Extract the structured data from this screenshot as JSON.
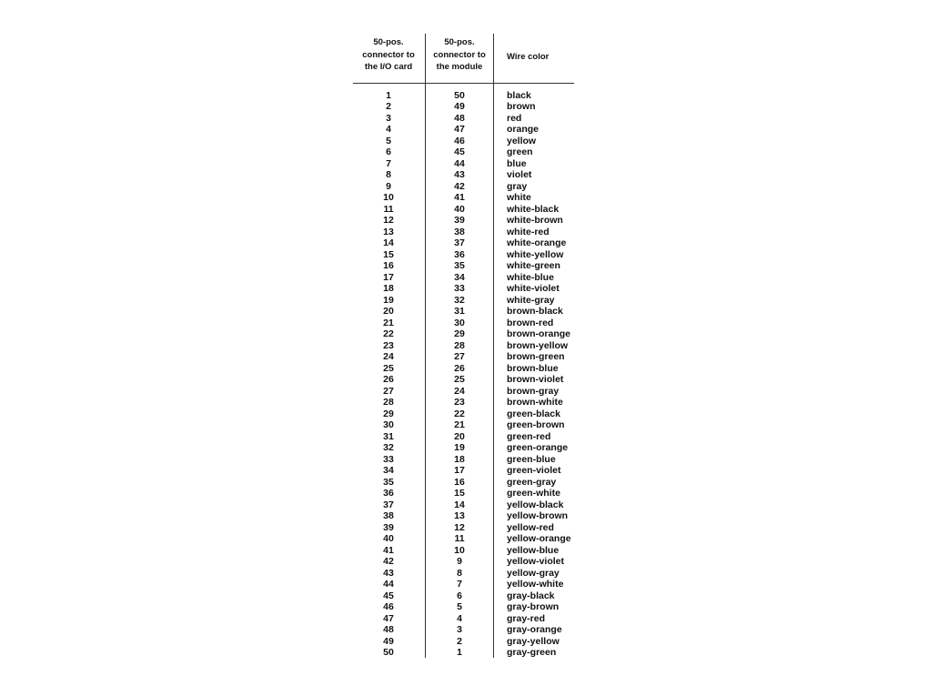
{
  "table": {
    "headers": [
      "50-pos.\nconnector to\nthe I/O card",
      "50-pos.\nconnector to\nthe module",
      "Wire color"
    ],
    "rows": [
      [
        "1",
        "50",
        "black"
      ],
      [
        "2",
        "49",
        "brown"
      ],
      [
        "3",
        "48",
        "red"
      ],
      [
        "4",
        "47",
        "orange"
      ],
      [
        "5",
        "46",
        "yellow"
      ],
      [
        "6",
        "45",
        "green"
      ],
      [
        "7",
        "44",
        "blue"
      ],
      [
        "8",
        "43",
        "violet"
      ],
      [
        "9",
        "42",
        "gray"
      ],
      [
        "10",
        "41",
        "white"
      ],
      [
        "11",
        "40",
        "white-black"
      ],
      [
        "12",
        "39",
        "white-brown"
      ],
      [
        "13",
        "38",
        "white-red"
      ],
      [
        "14",
        "37",
        "white-orange"
      ],
      [
        "15",
        "36",
        "white-yellow"
      ],
      [
        "16",
        "35",
        "white-green"
      ],
      [
        "17",
        "34",
        "white-blue"
      ],
      [
        "18",
        "33",
        "white-violet"
      ],
      [
        "19",
        "32",
        "white-gray"
      ],
      [
        "20",
        "31",
        "brown-black"
      ],
      [
        "21",
        "30",
        "brown-red"
      ],
      [
        "22",
        "29",
        "brown-orange"
      ],
      [
        "23",
        "28",
        "brown-yellow"
      ],
      [
        "24",
        "27",
        "brown-green"
      ],
      [
        "25",
        "26",
        "brown-blue"
      ],
      [
        "26",
        "25",
        "brown-violet"
      ],
      [
        "27",
        "24",
        "brown-gray"
      ],
      [
        "28",
        "23",
        "brown-white"
      ],
      [
        "29",
        "22",
        "green-black"
      ],
      [
        "30",
        "21",
        "green-brown"
      ],
      [
        "31",
        "20",
        "green-red"
      ],
      [
        "32",
        "19",
        "green-orange"
      ],
      [
        "33",
        "18",
        "green-blue"
      ],
      [
        "34",
        "17",
        "green-violet"
      ],
      [
        "35",
        "16",
        "green-gray"
      ],
      [
        "36",
        "15",
        "green-white"
      ],
      [
        "37",
        "14",
        "yellow-black"
      ],
      [
        "38",
        "13",
        "yellow-brown"
      ],
      [
        "39",
        "12",
        "yellow-red"
      ],
      [
        "40",
        "11",
        "yellow-orange"
      ],
      [
        "41",
        "10",
        "yellow-blue"
      ],
      [
        "42",
        "9",
        "yellow-violet"
      ],
      [
        "43",
        "8",
        "yellow-gray"
      ],
      [
        "44",
        "7",
        "yellow-white"
      ],
      [
        "45",
        "6",
        "gray-black"
      ],
      [
        "46",
        "5",
        "gray-brown"
      ],
      [
        "47",
        "4",
        "gray-red"
      ],
      [
        "48",
        "3",
        "gray-orange"
      ],
      [
        "49",
        "2",
        "gray-yellow"
      ],
      [
        "50",
        "1",
        "gray-green"
      ]
    ]
  }
}
